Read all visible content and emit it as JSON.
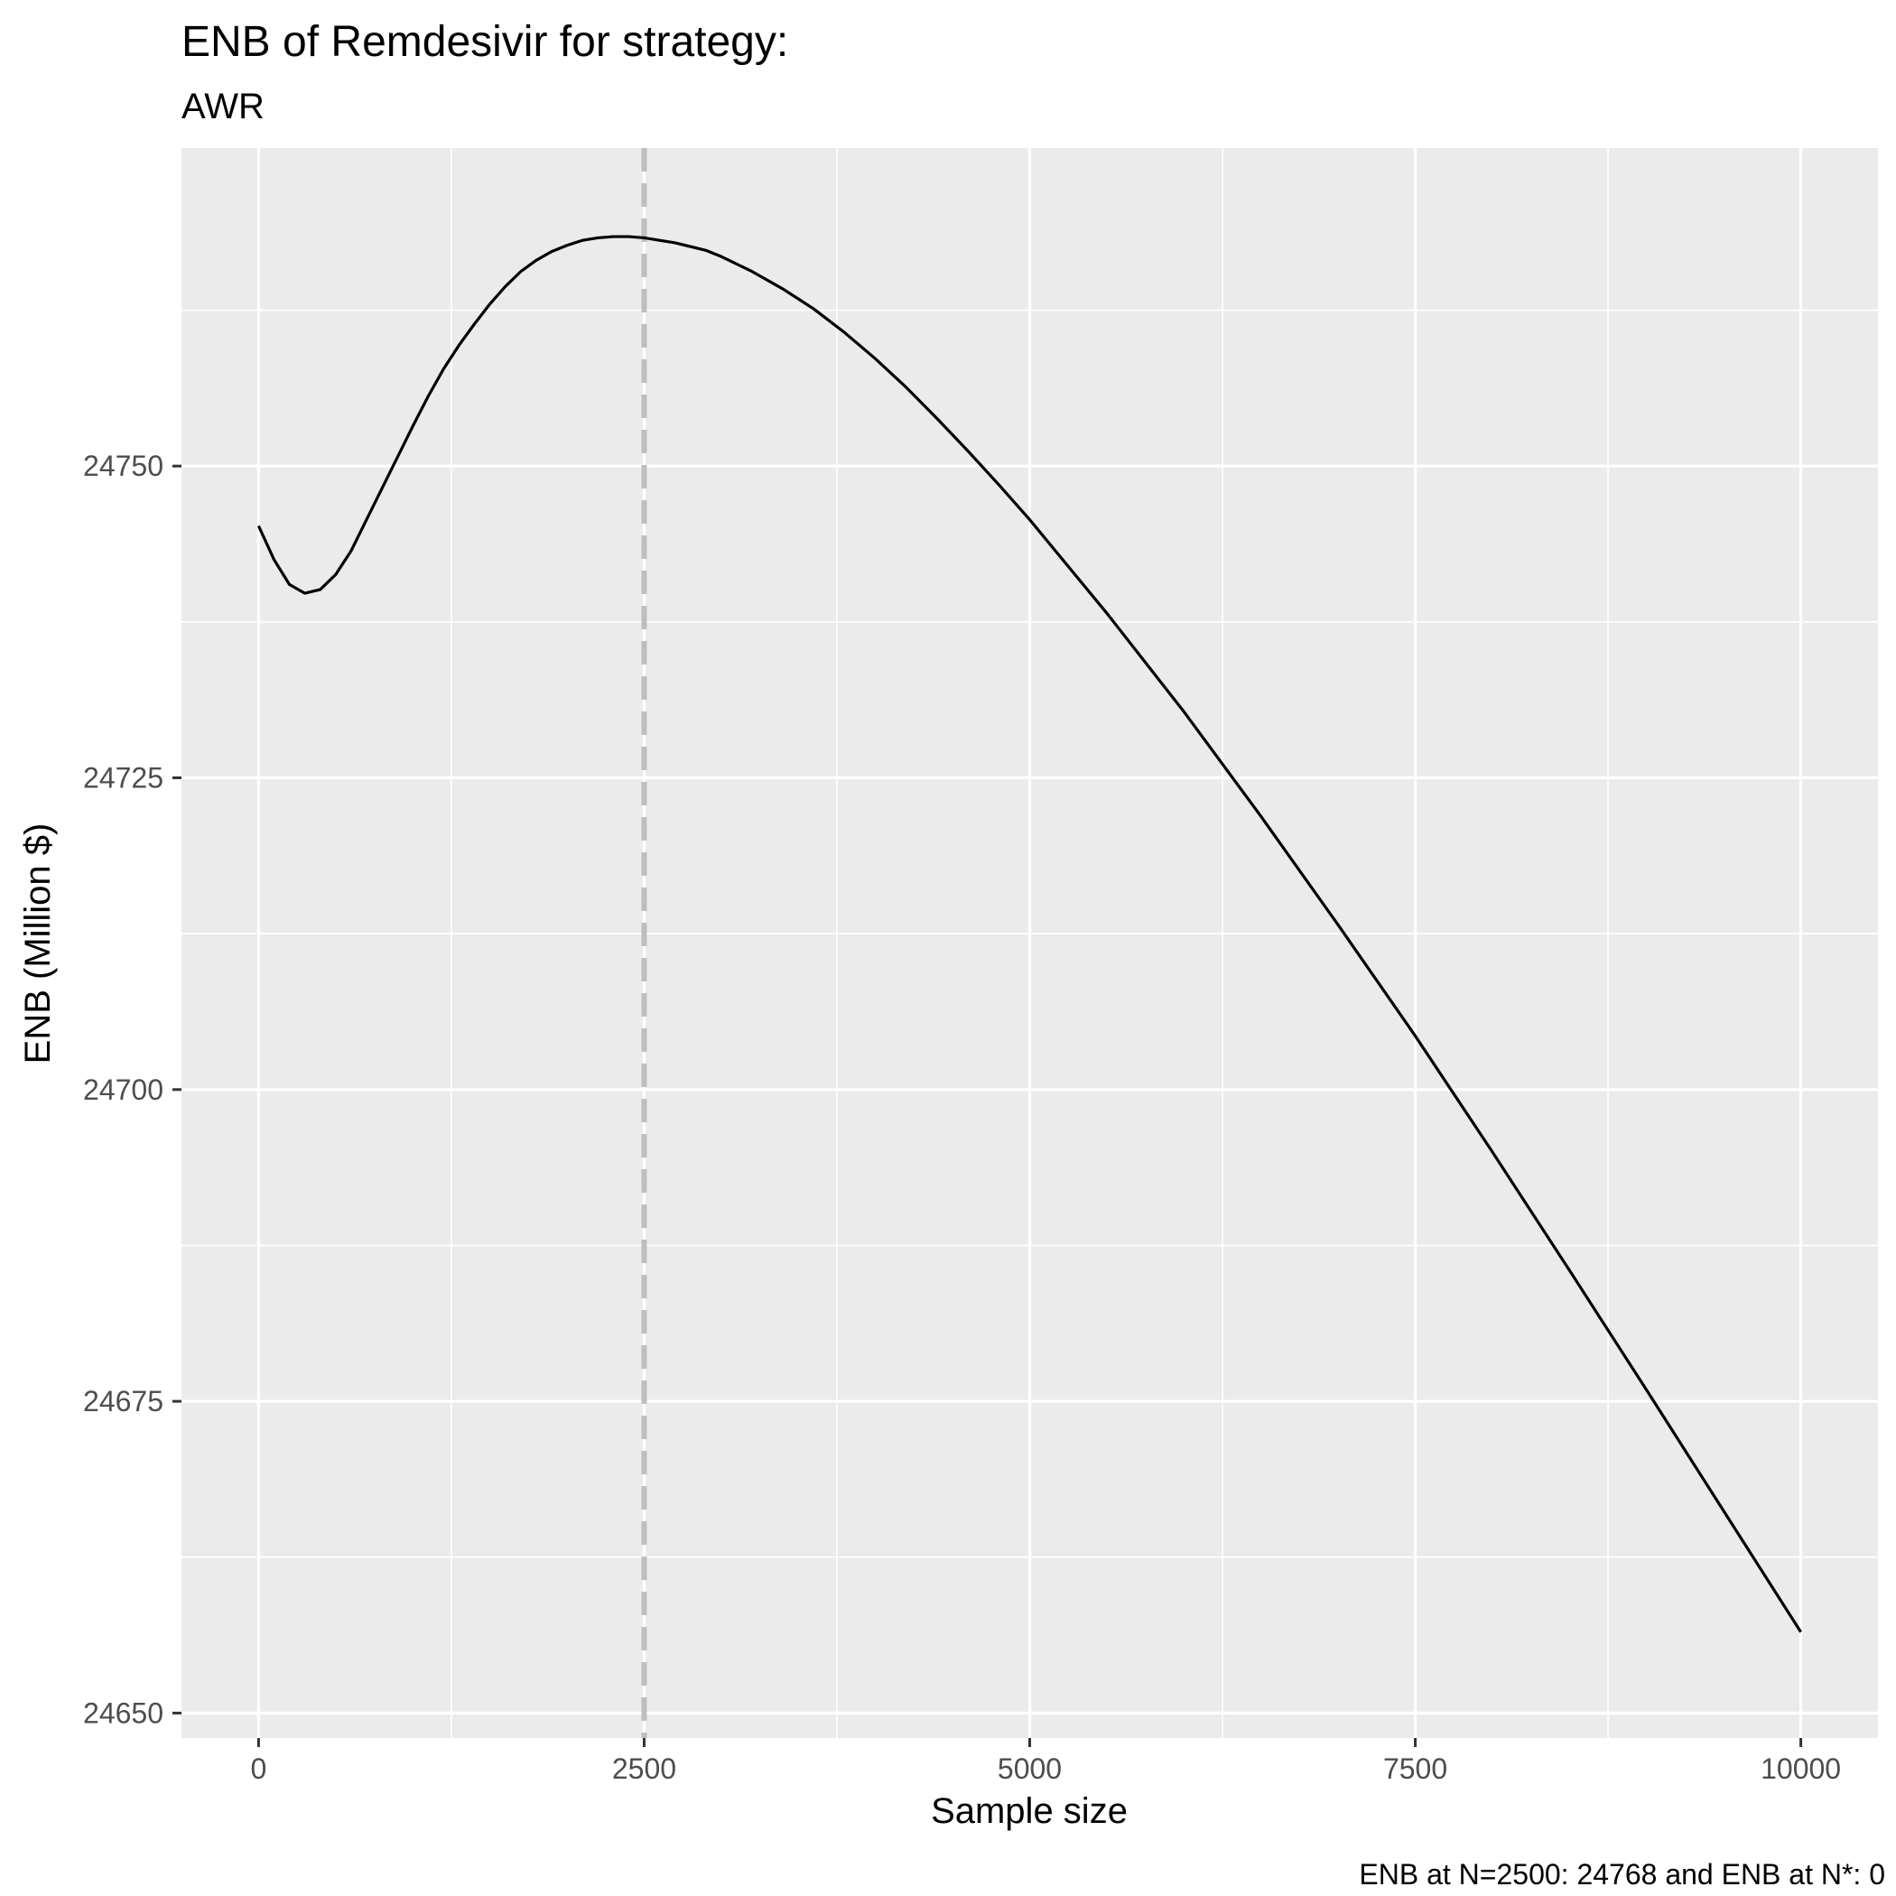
{
  "chart_data": {
    "type": "line",
    "title": "ENB of Remdesivir for strategy:",
    "subtitle": "AWR",
    "xlabel": "Sample size",
    "ylabel": "ENB (Million $)",
    "caption": "ENB at N=2500: 24768 and ENB at N*: 0",
    "xlim": [
      -500,
      10500
    ],
    "ylim": [
      24648,
      24775.5
    ],
    "x_ticks": [
      0,
      2500,
      5000,
      7500,
      10000
    ],
    "x_tick_labels": [
      "0",
      "2500",
      "5000",
      "7500",
      "10000"
    ],
    "y_ticks": [
      24650,
      24675,
      24700,
      24725,
      24750
    ],
    "y_tick_labels": [
      "24650",
      "24675",
      "24700",
      "24725",
      "24750"
    ],
    "grid": true,
    "reference_line": {
      "x": 2500,
      "style": "dashed",
      "color": "#bebebe"
    },
    "series": [
      {
        "color": "#000000",
        "x": [
          0,
          100,
          200,
          300,
          400,
          500,
          600,
          700,
          800,
          900,
          1000,
          1100,
          1200,
          1300,
          1400,
          1500,
          1600,
          1700,
          1800,
          1900,
          2000,
          2100,
          2200,
          2300,
          2400,
          2500,
          2600,
          2700,
          2800,
          2900,
          3000,
          3200,
          3400,
          3600,
          3800,
          4000,
          4200,
          4400,
          4600,
          4800,
          5000,
          5500,
          6000,
          6500,
          7000,
          7500,
          8000,
          8500,
          9000,
          9500,
          10000
        ],
        "y": [
          24745.2,
          24742.5,
          24740.5,
          24739.8,
          24740.1,
          24741.3,
          24743.2,
          24745.7,
          24748.2,
          24750.7,
          24753.2,
          24755.6,
          24757.8,
          24759.7,
          24761.4,
          24763.0,
          24764.4,
          24765.6,
          24766.5,
          24767.2,
          24767.7,
          24768.1,
          24768.3,
          24768.4,
          24768.4,
          24768.3,
          24768.1,
          24767.9,
          24767.6,
          24767.3,
          24766.8,
          24765.6,
          24764.2,
          24762.6,
          24760.7,
          24758.6,
          24756.3,
          24753.8,
          24751.2,
          24748.5,
          24745.7,
          24738.2,
          24730.3,
          24721.9,
          24713.2,
          24704.3,
          24695.0,
          24685.5,
          24675.9,
          24666.2,
          24656.5
        ]
      }
    ]
  }
}
